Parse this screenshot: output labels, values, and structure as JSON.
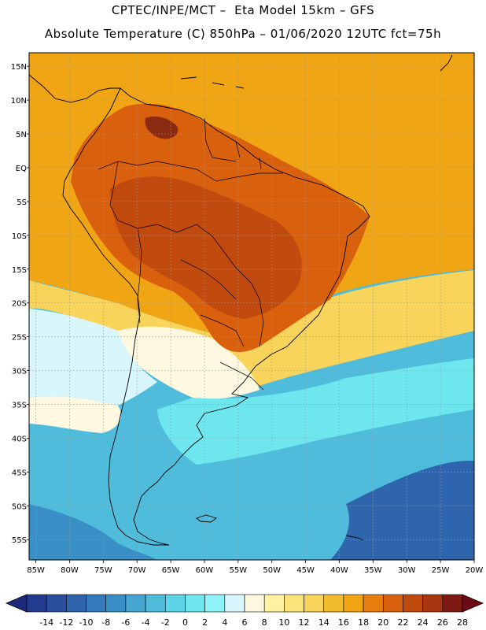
{
  "header": {
    "line1": "CPTEC/INPE/MCT –  Eta Model 15km – GFS",
    "line2": "Absolute Temperature (C) 850hPa – 01/06/2020 12UTC fct=75h"
  },
  "map": {
    "lon_range": [
      -86,
      -20
    ],
    "lat_range": [
      -58,
      17
    ],
    "lon_ticks": [
      {
        "v": -85,
        "label": "85W"
      },
      {
        "v": -80,
        "label": "80W"
      },
      {
        "v": -75,
        "label": "75W"
      },
      {
        "v": -70,
        "label": "70W"
      },
      {
        "v": -65,
        "label": "65W"
      },
      {
        "v": -60,
        "label": "60W"
      },
      {
        "v": -55,
        "label": "55W"
      },
      {
        "v": -50,
        "label": "50W"
      },
      {
        "v": -45,
        "label": "45W"
      },
      {
        "v": -40,
        "label": "40W"
      },
      {
        "v": -35,
        "label": "35W"
      },
      {
        "v": -30,
        "label": "30W"
      },
      {
        "v": -25,
        "label": "25W"
      },
      {
        "v": -20,
        "label": "20W"
      }
    ],
    "lat_ticks": [
      {
        "v": 15,
        "label": "15N"
      },
      {
        "v": 10,
        "label": "10N"
      },
      {
        "v": 5,
        "label": "5N"
      },
      {
        "v": 0,
        "label": "EQ"
      },
      {
        "v": -5,
        "label": "5S"
      },
      {
        "v": -10,
        "label": "10S"
      },
      {
        "v": -15,
        "label": "15S"
      },
      {
        "v": -20,
        "label": "20S"
      },
      {
        "v": -25,
        "label": "25S"
      },
      {
        "v": -30,
        "label": "30S"
      },
      {
        "v": -35,
        "label": "35S"
      },
      {
        "v": -40,
        "label": "40S"
      },
      {
        "v": -45,
        "label": "45S"
      },
      {
        "v": -50,
        "label": "50S"
      },
      {
        "v": -55,
        "label": "55S"
      }
    ]
  },
  "colorbar": {
    "labels": [
      "-14",
      "-12",
      "-10",
      "-8",
      "-6",
      "-4",
      "-2",
      "0",
      "2",
      "4",
      "6",
      "8",
      "10",
      "12",
      "14",
      "16",
      "18",
      "20",
      "22",
      "24",
      "26",
      "28"
    ],
    "low_color": "#1e2a7a",
    "high_color": "#6e0a14",
    "colors": [
      "#233b8c",
      "#2b4f9e",
      "#2f65ad",
      "#3479bb",
      "#3a8fc6",
      "#44a6d1",
      "#4fbcdc",
      "#5dd3e6",
      "#6de6ee",
      "#8ff2f8",
      "#d8f6fb",
      "#fff8e0",
      "#fff1a0",
      "#fbe37a",
      "#f8d45a",
      "#f3bc2d",
      "#efa514",
      "#e77d0e",
      "#d9610e",
      "#c14a0f",
      "#a83410",
      "#7f1a12"
    ]
  },
  "field_colors": {
    "deep_blue": "#2f65ad",
    "mid_blue": "#3a8fc6",
    "cyan": "#4fbcdc",
    "light_cyan": "#6de6ee",
    "pale_cyan": "#d8f6fb",
    "cream": "#fff8e0",
    "yellow": "#f8d45a",
    "orange": "#efa514",
    "dark_orange": "#d9610e",
    "red_brown": "#c14a0f",
    "dark_brown": "#8a2a10"
  }
}
